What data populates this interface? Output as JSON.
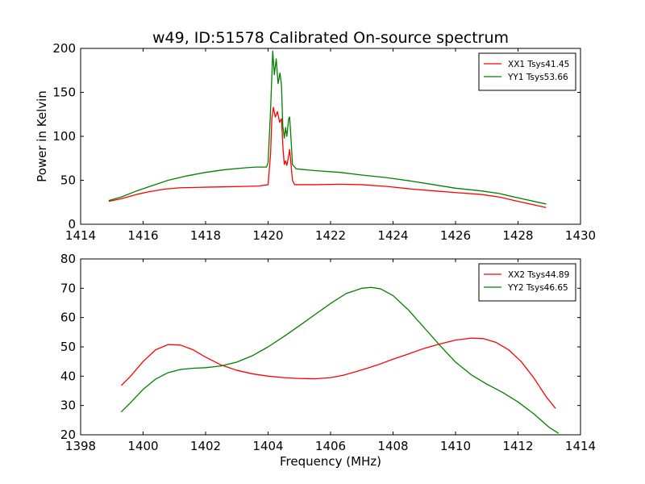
{
  "chart_data": [
    {
      "type": "line",
      "title": "w49, ID:51578 Calibrated On-source spectrum",
      "xlabel": "",
      "ylabel": "Power in Kelvin",
      "xlim": [
        1414,
        1430
      ],
      "ylim": [
        0,
        200
      ],
      "xticks": [
        1414,
        1416,
        1418,
        1420,
        1422,
        1424,
        1426,
        1428,
        1430
      ],
      "yticks": [
        0,
        50,
        100,
        150,
        200
      ],
      "legend_position": "top-right",
      "grid": false,
      "series": [
        {
          "name": "XX1 Tsys41.45",
          "color": "#ff0000",
          "points": [
            [
              1414.9,
              26
            ],
            [
              1415.3,
              29
            ],
            [
              1415.8,
              34
            ],
            [
              1416.2,
              37
            ],
            [
              1416.7,
              40
            ],
            [
              1417.2,
              41.5
            ],
            [
              1417.8,
              42
            ],
            [
              1418.5,
              42.5
            ],
            [
              1419.2,
              43
            ],
            [
              1419.7,
              43.5
            ],
            [
              1420.0,
              45
            ],
            [
              1420.08,
              80
            ],
            [
              1420.12,
              120
            ],
            [
              1420.17,
              133
            ],
            [
              1420.23,
              122
            ],
            [
              1420.3,
              128
            ],
            [
              1420.37,
              116
            ],
            [
              1420.43,
              120
            ],
            [
              1420.48,
              85
            ],
            [
              1420.52,
              68
            ],
            [
              1420.56,
              72
            ],
            [
              1420.6,
              67
            ],
            [
              1420.66,
              78
            ],
            [
              1420.69,
              85
            ],
            [
              1420.73,
              70
            ],
            [
              1420.78,
              50
            ],
            [
              1420.85,
              45
            ],
            [
              1421.5,
              45
            ],
            [
              1422.3,
              45.5
            ],
            [
              1423.0,
              45
            ],
            [
              1423.8,
              43
            ],
            [
              1424.6,
              40
            ],
            [
              1425.3,
              38
            ],
            [
              1426.0,
              36
            ],
            [
              1426.8,
              34
            ],
            [
              1427.4,
              31
            ],
            [
              1428.0,
              26
            ],
            [
              1428.9,
              19
            ]
          ]
        },
        {
          "name": "YY1 Tsys53.66",
          "color": "#008000",
          "points": [
            [
              1414.9,
              27
            ],
            [
              1415.3,
              31
            ],
            [
              1415.8,
              38
            ],
            [
              1416.3,
              44
            ],
            [
              1416.8,
              50
            ],
            [
              1417.4,
              55
            ],
            [
              1418.0,
              59
            ],
            [
              1418.6,
              62
            ],
            [
              1419.2,
              64
            ],
            [
              1419.6,
              65
            ],
            [
              1419.95,
              65
            ],
            [
              1420.0,
              70
            ],
            [
              1420.08,
              130
            ],
            [
              1420.15,
              197
            ],
            [
              1420.2,
              170
            ],
            [
              1420.26,
              188
            ],
            [
              1420.32,
              160
            ],
            [
              1420.38,
              172
            ],
            [
              1420.43,
              158
            ],
            [
              1420.47,
              112
            ],
            [
              1420.52,
              98
            ],
            [
              1420.56,
              110
            ],
            [
              1420.6,
              100
            ],
            [
              1420.66,
              120
            ],
            [
              1420.69,
              122
            ],
            [
              1420.73,
              100
            ],
            [
              1420.78,
              68
            ],
            [
              1420.9,
              63
            ],
            [
              1421.5,
              61
            ],
            [
              1422.3,
              59
            ],
            [
              1423.0,
              56
            ],
            [
              1423.8,
              53
            ],
            [
              1424.6,
              49
            ],
            [
              1425.3,
              45
            ],
            [
              1426.0,
              41
            ],
            [
              1426.8,
              38
            ],
            [
              1427.4,
              35
            ],
            [
              1428.0,
              30
            ],
            [
              1428.9,
              23
            ]
          ]
        }
      ]
    },
    {
      "type": "line",
      "title": "",
      "xlabel": "Frequency (MHz)",
      "ylabel": "",
      "xlim": [
        1398,
        1414
      ],
      "ylim": [
        20,
        80
      ],
      "xticks": [
        1398,
        1400,
        1402,
        1404,
        1406,
        1408,
        1410,
        1412,
        1414
      ],
      "yticks": [
        20,
        30,
        40,
        50,
        60,
        70,
        80
      ],
      "legend_position": "top-right",
      "grid": false,
      "series": [
        {
          "name": "XX2 Tsys44.89",
          "color": "#ff0000",
          "points": [
            [
              1399.3,
              36.8
            ],
            [
              1399.6,
              40
            ],
            [
              1400.0,
              45
            ],
            [
              1400.4,
              49
            ],
            [
              1400.8,
              50.8
            ],
            [
              1401.2,
              50.6
            ],
            [
              1401.6,
              49
            ],
            [
              1402.0,
              46.5
            ],
            [
              1402.5,
              43.8
            ],
            [
              1403.0,
              42
            ],
            [
              1403.5,
              40.8
            ],
            [
              1404.0,
              40
            ],
            [
              1404.5,
              39.5
            ],
            [
              1405.0,
              39.2
            ],
            [
              1405.5,
              39.1
            ],
            [
              1406.0,
              39.5
            ],
            [
              1406.4,
              40.3
            ],
            [
              1406.8,
              41.5
            ],
            [
              1407.2,
              42.8
            ],
            [
              1407.6,
              44.2
            ],
            [
              1408.0,
              45.8
            ],
            [
              1408.5,
              47.6
            ],
            [
              1409.0,
              49.5
            ],
            [
              1409.5,
              51
            ],
            [
              1410.0,
              52.3
            ],
            [
              1410.5,
              53
            ],
            [
              1410.9,
              52.8
            ],
            [
              1411.3,
              51.5
            ],
            [
              1411.7,
              49
            ],
            [
              1412.1,
              45
            ],
            [
              1412.5,
              39.5
            ],
            [
              1412.9,
              33
            ],
            [
              1413.2,
              29
            ]
          ]
        },
        {
          "name": "YY2 Tsys46.65",
          "color": "#008000",
          "points": [
            [
              1399.3,
              27.8
            ],
            [
              1399.6,
              31
            ],
            [
              1400.0,
              35.5
            ],
            [
              1400.4,
              39
            ],
            [
              1400.8,
              41.2
            ],
            [
              1401.2,
              42.3
            ],
            [
              1401.6,
              42.7
            ],
            [
              1402.0,
              42.9
            ],
            [
              1402.5,
              43.5
            ],
            [
              1403.0,
              44.8
            ],
            [
              1403.5,
              47
            ],
            [
              1404.0,
              50
            ],
            [
              1404.5,
              53.5
            ],
            [
              1405.0,
              57.2
            ],
            [
              1405.5,
              61
            ],
            [
              1406.0,
              64.8
            ],
            [
              1406.5,
              68.2
            ],
            [
              1407.0,
              70
            ],
            [
              1407.3,
              70.3
            ],
            [
              1407.6,
              69.8
            ],
            [
              1408.0,
              67.5
            ],
            [
              1408.5,
              62.5
            ],
            [
              1409.0,
              56.5
            ],
            [
              1409.5,
              50.5
            ],
            [
              1410.0,
              44.8
            ],
            [
              1410.5,
              40.5
            ],
            [
              1411.0,
              37.3
            ],
            [
              1411.5,
              34.5
            ],
            [
              1412.0,
              31.2
            ],
            [
              1412.5,
              27.2
            ],
            [
              1413.0,
              22.5
            ],
            [
              1413.3,
              20.5
            ]
          ]
        }
      ]
    }
  ]
}
